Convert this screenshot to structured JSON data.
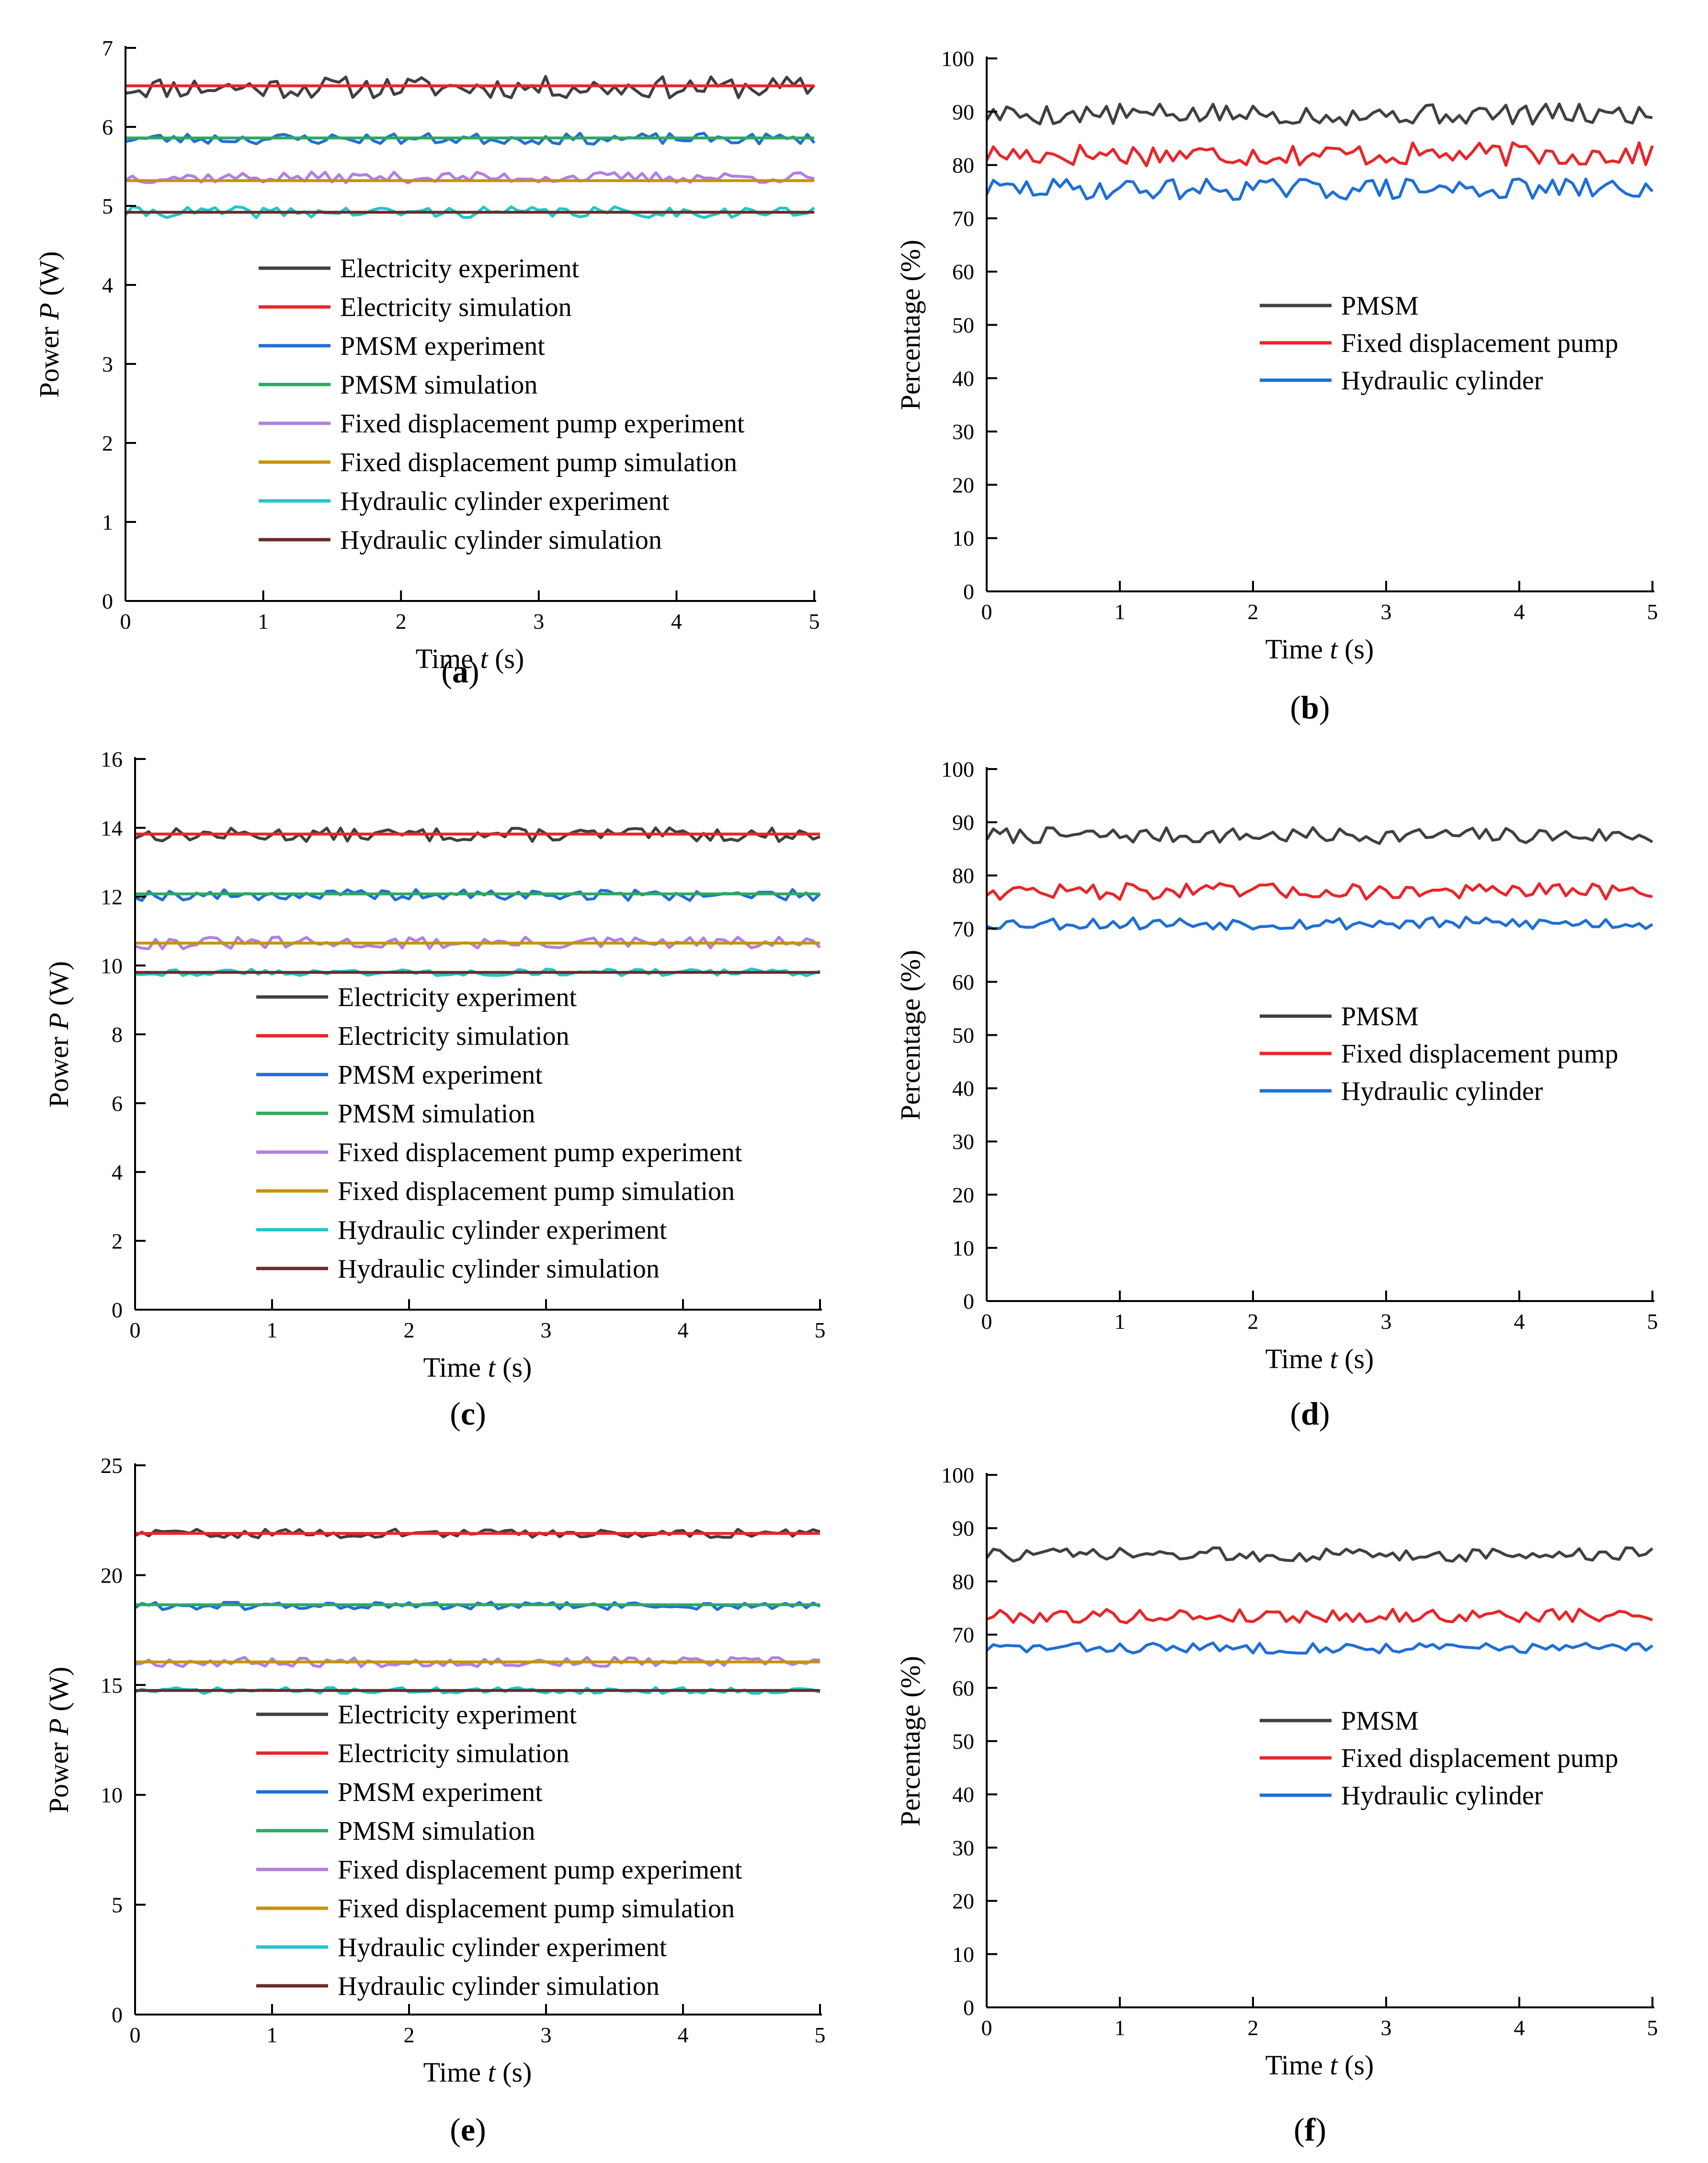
{
  "colors": {
    "electricity_exp": "#404040",
    "electricity_sim": "#e8262a",
    "pmsm_exp": "#1f6fd6",
    "pmsm_sim": "#2fa860",
    "pump_exp": "#b07fe0",
    "pump_sim": "#c79300",
    "cyl_exp": "#22c6cc",
    "cyl_sim": "#6b2b2b",
    "eff_pmsm": "#404040",
    "eff_pump": "#e8262a",
    "eff_cyl": "#1f6fd6"
  },
  "chart_data": [
    {
      "panel": "(a)",
      "type": "line",
      "xlabel_pre": "Time ",
      "xlabel_var": "t",
      "xlabel_post": " (s)",
      "ylabel_pre": "Power ",
      "ylabel_var": "P",
      "ylabel_post": " (W)",
      "xlim": [
        0,
        5
      ],
      "ylim": [
        0,
        7
      ],
      "xticks": [
        "0",
        "1",
        "2",
        "3",
        "4",
        "5"
      ],
      "yticks": [
        "0",
        "1",
        "2",
        "3",
        "4",
        "5",
        "6",
        "7"
      ],
      "legend_position": "lower-center",
      "series": [
        {
          "name": "Electricity experiment",
          "color": "electricity_exp",
          "mean": 6.5,
          "amp": 0.14,
          "seed": 11
        },
        {
          "name": "Electricity simulation",
          "color": "electricity_sim",
          "value": 6.52
        },
        {
          "name": "PMSM experiment",
          "color": "pmsm_exp",
          "mean": 5.85,
          "amp": 0.07,
          "seed": 23
        },
        {
          "name": "PMSM simulation",
          "color": "pmsm_sim",
          "value": 5.86
        },
        {
          "name": "Fixed displacement pump experiment",
          "color": "pump_exp",
          "mean": 5.36,
          "amp": 0.07,
          "seed": 37
        },
        {
          "name": "Fixed displacement pump simulation",
          "color": "pump_sim",
          "value": 5.32
        },
        {
          "name": "Hydraulic cylinder experiment",
          "color": "cyl_exp",
          "mean": 4.92,
          "amp": 0.07,
          "seed": 41
        },
        {
          "name": "Hydraulic cylinder simulation",
          "color": "cyl_sim",
          "value": 4.92
        }
      ]
    },
    {
      "panel": "(b)",
      "type": "line",
      "xlabel_pre": "Time ",
      "xlabel_var": "t",
      "xlabel_post": " (s)",
      "ylabel_pre": "Percentage (%)",
      "ylabel_var": "",
      "ylabel_post": "",
      "xlim": [
        0,
        5
      ],
      "ylim": [
        0,
        100
      ],
      "xticks": [
        "0",
        "1",
        "2",
        "3",
        "4",
        "5"
      ],
      "yticks": [
        "0",
        "10",
        "20",
        "30",
        "40",
        "50",
        "60",
        "70",
        "80",
        "90",
        "100"
      ],
      "legend_position": "center-right",
      "series": [
        {
          "name": "PMSM",
          "color": "eff_pmsm",
          "mean": 89.5,
          "amp": 2.0,
          "seed": 5
        },
        {
          "name": "Fixed displacement pump",
          "color": "eff_pump",
          "mean": 82.0,
          "amp": 2.2,
          "seed": 17
        },
        {
          "name": "Hydraulic cylinder",
          "color": "eff_cyl",
          "mean": 75.5,
          "amp": 2.0,
          "seed": 29
        }
      ]
    },
    {
      "panel": "(c)",
      "type": "line",
      "xlabel_pre": "Time ",
      "xlabel_var": "t",
      "xlabel_post": " (s)",
      "ylabel_pre": "Power ",
      "ylabel_var": "P",
      "ylabel_post": " (W)",
      "xlim": [
        0,
        5
      ],
      "ylim": [
        0,
        16
      ],
      "xticks": [
        "0",
        "1",
        "2",
        "3",
        "4",
        "5"
      ],
      "yticks": [
        "0",
        "2",
        "4",
        "6",
        "8",
        "10",
        "12",
        "14",
        "16"
      ],
      "legend_position": "lower-center",
      "series": [
        {
          "name": "Electricity experiment",
          "color": "electricity_exp",
          "mean": 13.8,
          "amp": 0.2,
          "seed": 13
        },
        {
          "name": "Electricity simulation",
          "color": "electricity_sim",
          "value": 13.82
        },
        {
          "name": "PMSM experiment",
          "color": "pmsm_exp",
          "mean": 12.05,
          "amp": 0.16,
          "seed": 19
        },
        {
          "name": "PMSM simulation",
          "color": "pmsm_sim",
          "value": 12.08
        },
        {
          "name": "Fixed displacement pump experiment",
          "color": "pump_exp",
          "mean": 10.65,
          "amp": 0.18,
          "seed": 31
        },
        {
          "name": "Fixed displacement pump simulation",
          "color": "pump_sim",
          "value": 10.65
        },
        {
          "name": "Hydraulic cylinder experiment",
          "color": "cyl_exp",
          "mean": 9.8,
          "amp": 0.1,
          "seed": 43
        },
        {
          "name": "Hydraulic cylinder simulation",
          "color": "cyl_sim",
          "value": 9.8
        }
      ]
    },
    {
      "panel": "(d)",
      "type": "line",
      "xlabel_pre": "Time ",
      "xlabel_var": "t",
      "xlabel_post": " (s)",
      "ylabel_pre": "Percentage (%)",
      "ylabel_var": "",
      "ylabel_post": "",
      "xlim": [
        0,
        5
      ],
      "ylim": [
        0,
        100
      ],
      "xticks": [
        "0",
        "1",
        "2",
        "3",
        "4",
        "5"
      ],
      "yticks": [
        "0",
        "10",
        "20",
        "30",
        "40",
        "50",
        "60",
        "70",
        "80",
        "90",
        "100"
      ],
      "legend_position": "center-right",
      "series": [
        {
          "name": "PMSM",
          "color": "eff_pmsm",
          "mean": 87.5,
          "amp": 1.5,
          "seed": 7
        },
        {
          "name": "Fixed displacement pump",
          "color": "eff_pump",
          "mean": 77.0,
          "amp": 1.5,
          "seed": 47
        },
        {
          "name": "Hydraulic cylinder",
          "color": "eff_cyl",
          "mean": 71.0,
          "amp": 1.2,
          "seed": 53
        }
      ]
    },
    {
      "panel": "(e)",
      "type": "line",
      "xlabel_pre": "Time ",
      "xlabel_var": "t",
      "xlabel_post": " (s)",
      "ylabel_pre": "Power ",
      "ylabel_var": "P",
      "ylabel_post": " (W)",
      "xlim": [
        0,
        5
      ],
      "ylim": [
        0,
        25
      ],
      "xticks": [
        "0",
        "1",
        "2",
        "3",
        "4",
        "5"
      ],
      "yticks": [
        "0",
        "5",
        "10",
        "15",
        "20",
        "25"
      ],
      "legend_position": "lower-center",
      "series": [
        {
          "name": "Electricity experiment",
          "color": "electricity_exp",
          "mean": 21.9,
          "amp": 0.2,
          "seed": 59
        },
        {
          "name": "Electricity simulation",
          "color": "electricity_sim",
          "value": 21.9
        },
        {
          "name": "PMSM experiment",
          "color": "pmsm_exp",
          "mean": 18.6,
          "amp": 0.18,
          "seed": 61
        },
        {
          "name": "PMSM simulation",
          "color": "pmsm_sim",
          "value": 18.65
        },
        {
          "name": "Fixed displacement pump experiment",
          "color": "pump_exp",
          "mean": 16.05,
          "amp": 0.22,
          "seed": 67
        },
        {
          "name": "Fixed displacement pump simulation",
          "color": "pump_sim",
          "value": 16.05
        },
        {
          "name": "Hydraulic cylinder experiment",
          "color": "cyl_exp",
          "mean": 14.75,
          "amp": 0.14,
          "seed": 71
        },
        {
          "name": "Hydraulic cylinder simulation",
          "color": "cyl_sim",
          "value": 14.75
        }
      ]
    },
    {
      "panel": "(f)",
      "type": "line",
      "xlabel_pre": "Time ",
      "xlabel_var": "t",
      "xlabel_post": " (s)",
      "ylabel_pre": "Percentage (%)",
      "ylabel_var": "",
      "ylabel_post": "",
      "xlim": [
        0,
        5
      ],
      "ylim": [
        0,
        100
      ],
      "xticks": [
        "0",
        "1",
        "2",
        "3",
        "4",
        "5"
      ],
      "yticks": [
        "0",
        "10",
        "20",
        "30",
        "40",
        "50",
        "60",
        "70",
        "80",
        "90",
        "100"
      ],
      "legend_position": "center-right",
      "series": [
        {
          "name": "PMSM",
          "color": "eff_pmsm",
          "mean": 85.0,
          "amp": 1.3,
          "seed": 73
        },
        {
          "name": "Fixed displacement pump",
          "color": "eff_pump",
          "mean": 73.5,
          "amp": 1.3,
          "seed": 79
        },
        {
          "name": "Hydraulic cylinder",
          "color": "eff_cyl",
          "mean": 67.5,
          "amp": 1.0,
          "seed": 83
        }
      ]
    }
  ]
}
